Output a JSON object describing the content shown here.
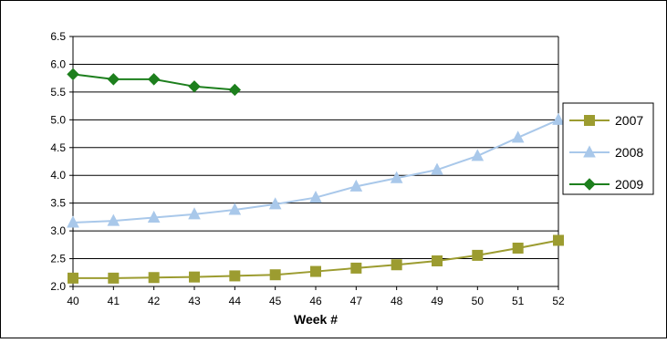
{
  "chart_data": {
    "type": "line",
    "title": "",
    "xlabel": "Week #",
    "ylabel": "",
    "x": [
      40,
      41,
      42,
      43,
      44,
      45,
      46,
      47,
      48,
      49,
      50,
      51,
      52
    ],
    "xlim": [
      40,
      52
    ],
    "ylim": [
      2.0,
      6.5
    ],
    "yticks": [
      "2.0",
      "2.5",
      "3.0",
      "3.5",
      "4.0",
      "4.5",
      "5.0",
      "5.5",
      "6.0",
      "6.5"
    ],
    "grid": "horizontal",
    "legend_position": "right",
    "series": [
      {
        "name": "2007",
        "marker": "square",
        "color": "#9c9c30",
        "x": [
          40,
          41,
          42,
          43,
          44,
          45,
          46,
          47,
          48,
          49,
          50,
          51,
          52
        ],
        "values": [
          2.15,
          2.15,
          2.16,
          2.17,
          2.19,
          2.21,
          2.27,
          2.33,
          2.39,
          2.46,
          2.56,
          2.69,
          2.83
        ]
      },
      {
        "name": "2008",
        "marker": "triangle",
        "color": "#a9c8ea",
        "x": [
          40,
          41,
          42,
          43,
          44,
          45,
          46,
          47,
          48,
          49,
          50,
          51,
          52
        ],
        "values": [
          3.15,
          3.18,
          3.24,
          3.3,
          3.38,
          3.48,
          3.6,
          3.8,
          3.95,
          4.1,
          4.35,
          4.68,
          5.0
        ]
      },
      {
        "name": "2009",
        "marker": "diamond",
        "color": "#1d7f1d",
        "x": [
          40,
          41,
          42,
          43,
          44
        ],
        "values": [
          5.82,
          5.73,
          5.73,
          5.6,
          5.54
        ]
      }
    ]
  }
}
